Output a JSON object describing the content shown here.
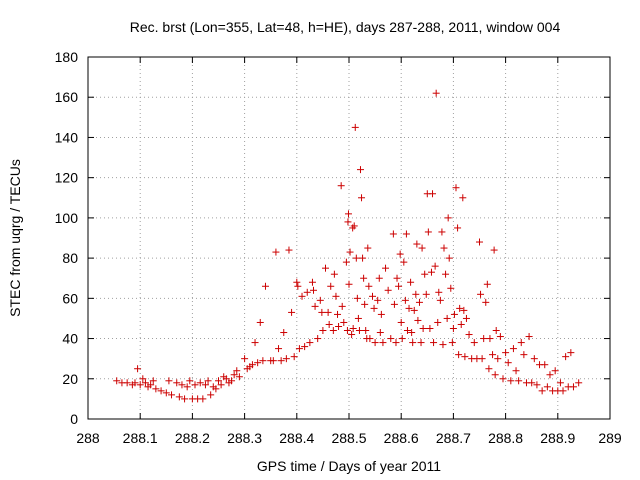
{
  "chart_data": {
    "type": "scatter",
    "title": "Rec. brst (Lon=355, Lat=48, h=HE), days 287-288, 2011, window 004",
    "xlabel": "GPS time / Days of year 2011",
    "ylabel": "STEC from uqrg / TECUs",
    "xlim": [
      288,
      289
    ],
    "ylim": [
      0,
      180
    ],
    "xticks": [
      "288",
      "288.1",
      "288.2",
      "288.3",
      "288.4",
      "288.5",
      "288.6",
      "288.7",
      "288.8",
      "288.9",
      "289"
    ],
    "yticks": [
      "0",
      "20",
      "40",
      "60",
      "80",
      "100",
      "120",
      "140",
      "160",
      "180"
    ],
    "grid": true,
    "marker": "+",
    "color": "#cc0000",
    "series": [
      {
        "points": [
          [
            288.055,
            19
          ],
          [
            288.065,
            18
          ],
          [
            288.075,
            18
          ],
          [
            288.085,
            17
          ],
          [
            288.09,
            18
          ],
          [
            288.095,
            25
          ],
          [
            288.1,
            17
          ],
          [
            288.105,
            20
          ],
          [
            288.11,
            18
          ],
          [
            288.115,
            16
          ],
          [
            288.12,
            17
          ],
          [
            288.125,
            19
          ],
          [
            288.13,
            15
          ],
          [
            288.14,
            14
          ],
          [
            288.15,
            13
          ],
          [
            288.155,
            19
          ],
          [
            288.16,
            12
          ],
          [
            288.17,
            18
          ],
          [
            288.175,
            11
          ],
          [
            288.18,
            17
          ],
          [
            288.185,
            10
          ],
          [
            288.19,
            16
          ],
          [
            288.195,
            19
          ],
          [
            288.2,
            10
          ],
          [
            288.205,
            17
          ],
          [
            288.21,
            10
          ],
          [
            288.215,
            18
          ],
          [
            288.22,
            10
          ],
          [
            288.225,
            17
          ],
          [
            288.23,
            19
          ],
          [
            288.235,
            12
          ],
          [
            288.24,
            16
          ],
          [
            288.245,
            15
          ],
          [
            288.25,
            19
          ],
          [
            288.255,
            17
          ],
          [
            288.26,
            21
          ],
          [
            288.265,
            20
          ],
          [
            288.27,
            18
          ],
          [
            288.275,
            19
          ],
          [
            288.28,
            22
          ],
          [
            288.285,
            24
          ],
          [
            288.29,
            21
          ],
          [
            288.3,
            30
          ],
          [
            288.305,
            25
          ],
          [
            288.31,
            26
          ],
          [
            288.315,
            27
          ],
          [
            288.32,
            38
          ],
          [
            288.325,
            28
          ],
          [
            288.33,
            48
          ],
          [
            288.335,
            29
          ],
          [
            288.34,
            66
          ],
          [
            288.35,
            29
          ],
          [
            288.355,
            29
          ],
          [
            288.36,
            83
          ],
          [
            288.365,
            35
          ],
          [
            288.37,
            29
          ],
          [
            288.375,
            43
          ],
          [
            288.38,
            30
          ],
          [
            288.385,
            84
          ],
          [
            288.39,
            53
          ],
          [
            288.395,
            31
          ],
          [
            288.4,
            68
          ],
          [
            288.402,
            66
          ],
          [
            288.405,
            35
          ],
          [
            288.41,
            61
          ],
          [
            288.415,
            36
          ],
          [
            288.42,
            63
          ],
          [
            288.425,
            38
          ],
          [
            288.43,
            68
          ],
          [
            288.432,
            64
          ],
          [
            288.435,
            56
          ],
          [
            288.44,
            40
          ],
          [
            288.445,
            59
          ],
          [
            288.448,
            53
          ],
          [
            288.45,
            44
          ],
          [
            288.455,
            75
          ],
          [
            288.46,
            53
          ],
          [
            288.462,
            47
          ],
          [
            288.465,
            66
          ],
          [
            288.47,
            44
          ],
          [
            288.472,
            72
          ],
          [
            288.475,
            61
          ],
          [
            288.478,
            52
          ],
          [
            288.48,
            46
          ],
          [
            288.485,
            116
          ],
          [
            288.487,
            56
          ],
          [
            288.49,
            48
          ],
          [
            288.495,
            78
          ],
          [
            288.497,
            44
          ],
          [
            288.498,
            98
          ],
          [
            288.499,
            102
          ],
          [
            288.5,
            67
          ],
          [
            288.502,
            83
          ],
          [
            288.505,
            42
          ],
          [
            288.507,
            95
          ],
          [
            288.508,
            45
          ],
          [
            288.51,
            96
          ],
          [
            288.512,
            145
          ],
          [
            288.514,
            80
          ],
          [
            288.516,
            60
          ],
          [
            288.518,
            50
          ],
          [
            288.52,
            44
          ],
          [
            288.522,
            124
          ],
          [
            288.524,
            110
          ],
          [
            288.526,
            80
          ],
          [
            288.528,
            70
          ],
          [
            288.53,
            57
          ],
          [
            288.532,
            44
          ],
          [
            288.534,
            40
          ],
          [
            288.536,
            85
          ],
          [
            288.538,
            66
          ],
          [
            288.54,
            40
          ],
          [
            288.545,
            61
          ],
          [
            288.548,
            55
          ],
          [
            288.55,
            38
          ],
          [
            288.555,
            59
          ],
          [
            288.558,
            70
          ],
          [
            288.56,
            43
          ],
          [
            288.562,
            52
          ],
          [
            288.565,
            38
          ],
          [
            288.57,
            75
          ],
          [
            288.575,
            64
          ],
          [
            288.58,
            40
          ],
          [
            288.585,
            92
          ],
          [
            288.587,
            57
          ],
          [
            288.59,
            38
          ],
          [
            288.592,
            70
          ],
          [
            288.595,
            66
          ],
          [
            288.598,
            82
          ],
          [
            288.6,
            48
          ],
          [
            288.602,
            40
          ],
          [
            288.605,
            78
          ],
          [
            288.608,
            59
          ],
          [
            288.61,
            92
          ],
          [
            288.612,
            44
          ],
          [
            288.615,
            55
          ],
          [
            288.618,
            68
          ],
          [
            288.62,
            43
          ],
          [
            288.622,
            38
          ],
          [
            288.625,
            54
          ],
          [
            288.628,
            62
          ],
          [
            288.63,
            87
          ],
          [
            288.632,
            49
          ],
          [
            288.635,
            58
          ],
          [
            288.638,
            38
          ],
          [
            288.64,
            85
          ],
          [
            288.642,
            45
          ],
          [
            288.645,
            72
          ],
          [
            288.648,
            62
          ],
          [
            288.65,
            112
          ],
          [
            288.652,
            93
          ],
          [
            288.655,
            45
          ],
          [
            288.658,
            73
          ],
          [
            288.66,
            112
          ],
          [
            288.662,
            38
          ],
          [
            288.665,
            76
          ],
          [
            288.667,
            162
          ],
          [
            288.67,
            48
          ],
          [
            288.672,
            63
          ],
          [
            288.675,
            59
          ],
          [
            288.678,
            93
          ],
          [
            288.68,
            37
          ],
          [
            288.682,
            85
          ],
          [
            288.685,
            72
          ],
          [
            288.688,
            50
          ],
          [
            288.69,
            100
          ],
          [
            288.692,
            80
          ],
          [
            288.695,
            65
          ],
          [
            288.698,
            38
          ],
          [
            288.7,
            45
          ],
          [
            288.702,
            52
          ],
          [
            288.705,
            115
          ],
          [
            288.708,
            95
          ],
          [
            288.71,
            32
          ],
          [
            288.712,
            55
          ],
          [
            288.715,
            47
          ],
          [
            288.718,
            110
          ],
          [
            288.72,
            54
          ],
          [
            288.722,
            31
          ],
          [
            288.725,
            50
          ],
          [
            288.73,
            42
          ],
          [
            288.735,
            30
          ],
          [
            288.74,
            38
          ],
          [
            288.745,
            30
          ],
          [
            288.75,
            88
          ],
          [
            288.752,
            62
          ],
          [
            288.755,
            30
          ],
          [
            288.758,
            40
          ],
          [
            288.762,
            58
          ],
          [
            288.765,
            67
          ],
          [
            288.768,
            25
          ],
          [
            288.77,
            40
          ],
          [
            288.775,
            32
          ],
          [
            288.778,
            84
          ],
          [
            288.78,
            22
          ],
          [
            288.782,
            44
          ],
          [
            288.785,
            30
          ],
          [
            288.79,
            41
          ],
          [
            288.795,
            20
          ],
          [
            288.8,
            33
          ],
          [
            288.805,
            28
          ],
          [
            288.81,
            19
          ],
          [
            288.815,
            35
          ],
          [
            288.82,
            24
          ],
          [
            288.825,
            19
          ],
          [
            288.83,
            38
          ],
          [
            288.835,
            32
          ],
          [
            288.84,
            18
          ],
          [
            288.845,
            41
          ],
          [
            288.85,
            18
          ],
          [
            288.855,
            30
          ],
          [
            288.86,
            17
          ],
          [
            288.865,
            27
          ],
          [
            288.87,
            14
          ],
          [
            288.875,
            27
          ],
          [
            288.88,
            16
          ],
          [
            288.885,
            22
          ],
          [
            288.89,
            14
          ],
          [
            288.895,
            24
          ],
          [
            288.9,
            14
          ],
          [
            288.905,
            18
          ],
          [
            288.91,
            14
          ],
          [
            288.915,
            31
          ],
          [
            288.92,
            16
          ],
          [
            288.925,
            33
          ],
          [
            288.93,
            16
          ],
          [
            288.94,
            18
          ]
        ]
      }
    ]
  }
}
